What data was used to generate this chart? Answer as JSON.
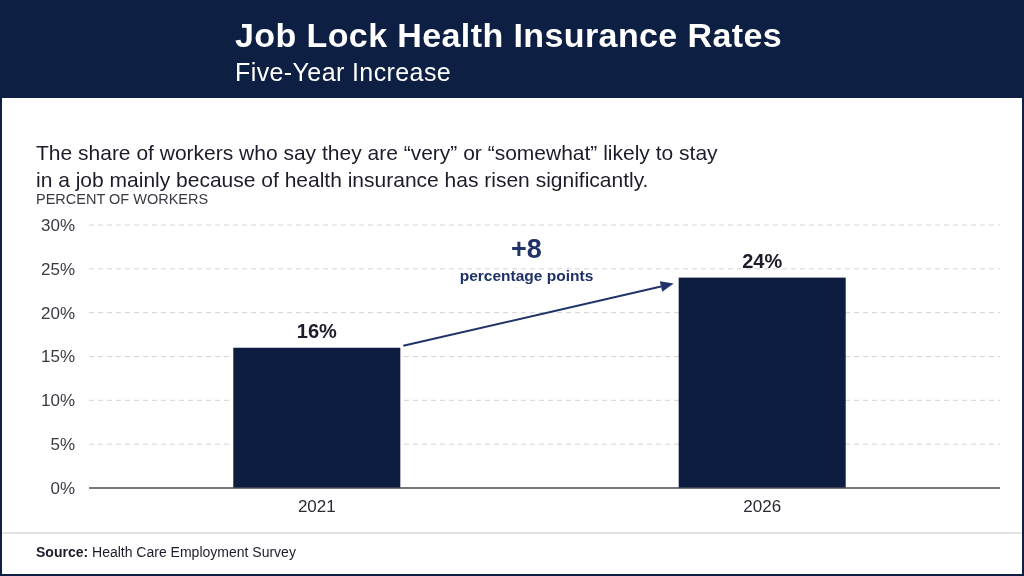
{
  "chart_data": {
    "type": "bar",
    "title": "Job Lock Health Insurance Rates",
    "subtitle": "Five-Year Increase",
    "ylabel": "PERCENT OF WORKERS",
    "categories": [
      "2021",
      "2026"
    ],
    "values": [
      16,
      24
    ],
    "color": "#0c1d40",
    "value_labels": [
      "16%",
      "24%"
    ],
    "ylim": [
      0,
      30
    ],
    "yticks": [
      {
        "value": 0,
        "label": "0%"
      },
      {
        "value": 5,
        "label": "5%"
      },
      {
        "value": 10,
        "label": "10%"
      },
      {
        "value": 15,
        "label": "15%"
      },
      {
        "value": 20,
        "label": "20%"
      },
      {
        "value": 25,
        "label": "25%"
      },
      {
        "value": 30,
        "label": "30%"
      }
    ],
    "grid": "y",
    "annotations": [
      "The share of workers who say they are “very” or “somewhat” likely to stay in a job mainly because of health insurance has risen significantly.",
      "+8",
      "percentage points",
      "Source: Health Care Employment Survey"
    ]
  }
}
